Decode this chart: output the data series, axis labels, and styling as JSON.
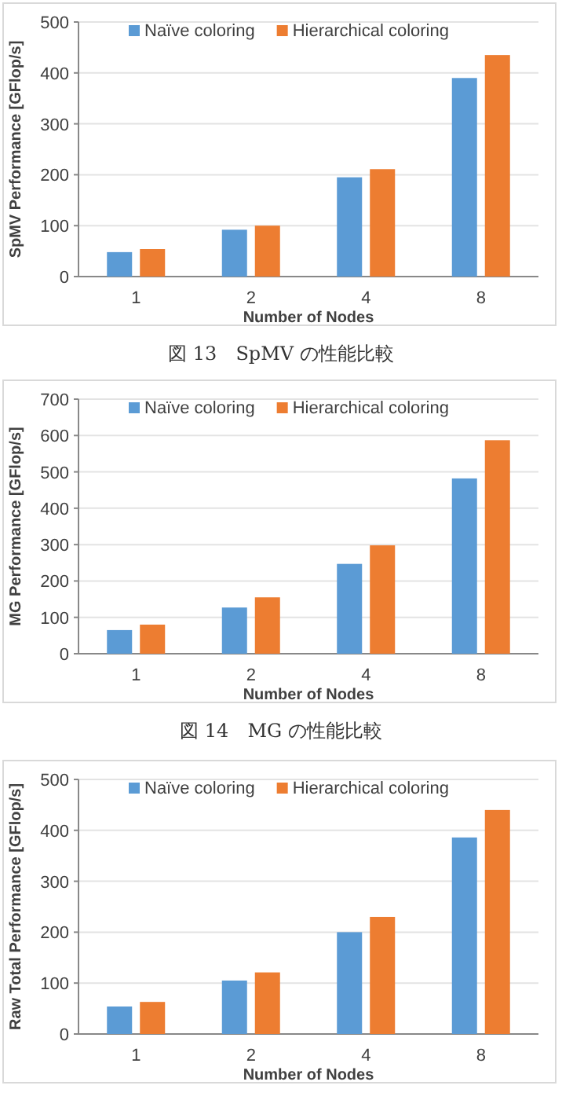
{
  "chart_data": [
    {
      "type": "bar",
      "categories": [
        "1",
        "2",
        "4",
        "8"
      ],
      "xlabel": "Number of Nodes",
      "ylabel": "SpMV Performance [GFlop/s]",
      "ylim": [
        0,
        500
      ],
      "yticks": [
        0,
        100,
        200,
        300,
        400,
        500
      ],
      "grid": "y",
      "legend": "top",
      "annotations": [
        "図 13　SpMV の性能比較"
      ],
      "series": [
        {
          "name": "Naïve coloring",
          "color": "#5b9bd5",
          "values": [
            48,
            92,
            195,
            390
          ]
        },
        {
          "name": "Hierarchical coloring",
          "color": "#ed7d31",
          "values": [
            54,
            100,
            211,
            435
          ]
        }
      ]
    },
    {
      "type": "bar",
      "categories": [
        "1",
        "2",
        "4",
        "8"
      ],
      "xlabel": "Number of Nodes",
      "ylabel": "MG Performance [GFlop/s]",
      "ylim": [
        0,
        700
      ],
      "yticks": [
        0,
        100,
        200,
        300,
        400,
        500,
        600,
        700
      ],
      "grid": "y",
      "legend": "top",
      "annotations": [
        "図 14　MG の性能比較"
      ],
      "series": [
        {
          "name": "Naïve coloring",
          "color": "#5b9bd5",
          "values": [
            65,
            127,
            247,
            482
          ]
        },
        {
          "name": "Hierarchical coloring",
          "color": "#ed7d31",
          "values": [
            80,
            155,
            298,
            587
          ]
        }
      ]
    },
    {
      "type": "bar",
      "categories": [
        "1",
        "2",
        "4",
        "8"
      ],
      "xlabel": "Number of Nodes",
      "ylabel": "Raw Total Performance [GFlop/s]",
      "ylim": [
        0,
        500
      ],
      "yticks": [
        0,
        100,
        200,
        300,
        400,
        500
      ],
      "grid": "y",
      "legend": "top",
      "series": [
        {
          "name": "Naïve coloring",
          "color": "#5b9bd5",
          "values": [
            54,
            105,
            200,
            386
          ]
        },
        {
          "name": "Hierarchical coloring",
          "color": "#ed7d31",
          "values": [
            63,
            121,
            230,
            440
          ]
        }
      ]
    }
  ]
}
